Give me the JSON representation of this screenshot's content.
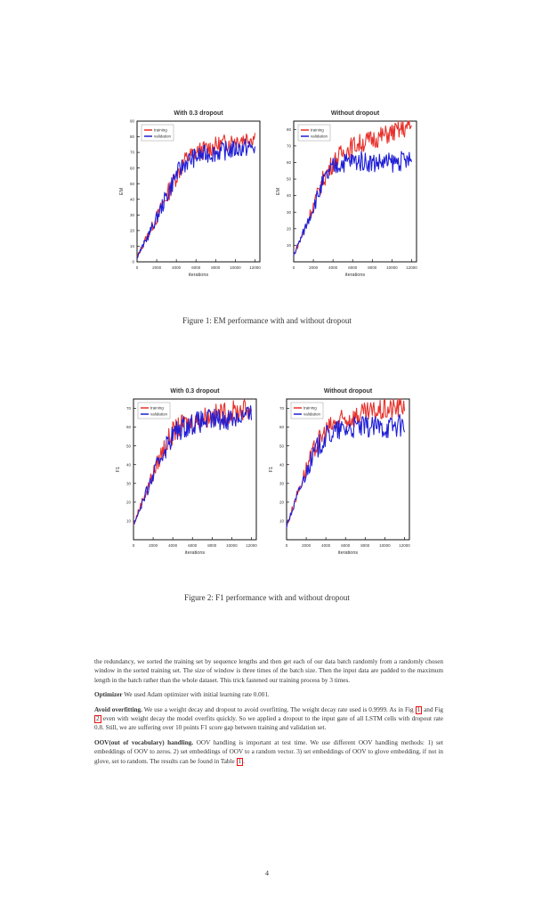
{
  "figure1": {
    "caption": "Figure 1: EM performance with and without dropout",
    "charts": [
      {
        "title": "With 0.3 dropout",
        "xlabel": "iterations",
        "ylabel": "EM",
        "legend": [
          "training",
          "validation"
        ],
        "xticks": [
          "0",
          "2000",
          "4000",
          "6000",
          "8000",
          "10000",
          "12000"
        ],
        "yticks": [
          "0",
          "10",
          "20",
          "30",
          "40",
          "50",
          "60",
          "70",
          "80",
          "90"
        ]
      },
      {
        "title": "Without dropout",
        "xlabel": "iterations",
        "ylabel": "EM",
        "legend": [
          "training",
          "validation"
        ],
        "xticks": [
          "0",
          "2000",
          "4000",
          "6000",
          "8000",
          "10000",
          "12000"
        ],
        "yticks": [
          "10",
          "20",
          "30",
          "40",
          "50",
          "60",
          "70",
          "80"
        ]
      }
    ]
  },
  "figure2": {
    "caption": "Figure 2: F1 performance with and without dropout",
    "charts": [
      {
        "title": "With 0.3 dropout",
        "xlabel": "iterations",
        "ylabel": "F1",
        "legend": [
          "training",
          "validation"
        ],
        "xticks": [
          "0",
          "2000",
          "4000",
          "6000",
          "8000",
          "10000",
          "12000"
        ],
        "yticks": [
          "10",
          "20",
          "30",
          "40",
          "50",
          "60",
          "70"
        ]
      },
      {
        "title": "Without dropout",
        "xlabel": "iterations",
        "ylabel": "F1",
        "legend": [
          "training",
          "validation"
        ],
        "xticks": [
          "0",
          "2000",
          "4000",
          "6000",
          "8000",
          "10000",
          "12000"
        ],
        "yticks": [
          "10",
          "20",
          "30",
          "40",
          "50",
          "60",
          "70"
        ]
      }
    ]
  },
  "chart_data": [
    {
      "type": "line",
      "title": "With 0.3 dropout",
      "xlabel": "iterations",
      "ylabel": "EM",
      "xlim": [
        0,
        12500
      ],
      "ylim": [
        0,
        90
      ],
      "x": [
        0,
        1000,
        2000,
        3000,
        4000,
        5000,
        6000,
        7000,
        8000,
        9000,
        10000,
        11000,
        12000
      ],
      "series": [
        {
          "name": "training",
          "color": "#e8302a",
          "values": [
            3,
            16,
            28,
            42,
            55,
            66,
            70,
            72,
            74,
            76,
            78,
            79,
            80
          ]
        },
        {
          "name": "validation",
          "color": "#1f1fd6",
          "values": [
            3,
            15,
            28,
            42,
            56,
            64,
            67,
            69,
            70,
            71,
            72,
            73,
            73
          ]
        }
      ]
    },
    {
      "type": "line",
      "title": "Without dropout",
      "xlabel": "iterations",
      "ylabel": "EM",
      "xlim": [
        0,
        12500
      ],
      "ylim": [
        0,
        85
      ],
      "x": [
        0,
        1000,
        2000,
        3000,
        4000,
        5000,
        6000,
        7000,
        8000,
        9000,
        10000,
        11000,
        12000
      ],
      "series": [
        {
          "name": "training",
          "color": "#e8302a",
          "values": [
            4,
            18,
            34,
            50,
            60,
            66,
            70,
            72,
            74,
            76,
            78,
            80,
            82
          ]
        },
        {
          "name": "validation",
          "color": "#1f1fd6",
          "values": [
            4,
            18,
            33,
            48,
            57,
            60,
            61,
            61,
            60,
            60,
            60,
            61,
            61
          ]
        }
      ]
    },
    {
      "type": "line",
      "title": "With 0.3 dropout",
      "xlabel": "iterations",
      "ylabel": "F1",
      "xlim": [
        0,
        12500
      ],
      "ylim": [
        0,
        75
      ],
      "x": [
        0,
        1000,
        2000,
        3000,
        4000,
        5000,
        6000,
        7000,
        8000,
        9000,
        10000,
        11000,
        12000
      ],
      "series": [
        {
          "name": "training",
          "color": "#e8302a",
          "values": [
            8,
            22,
            35,
            48,
            57,
            61,
            63,
            65,
            66,
            67,
            68,
            69,
            70
          ]
        },
        {
          "name": "validation",
          "color": "#1f1fd6",
          "values": [
            8,
            21,
            34,
            47,
            56,
            60,
            62,
            63,
            64,
            64,
            65,
            66,
            66
          ]
        }
      ]
    },
    {
      "type": "line",
      "title": "Without dropout",
      "xlabel": "iterations",
      "ylabel": "F1",
      "xlim": [
        0,
        12500
      ],
      "ylim": [
        0,
        75
      ],
      "x": [
        0,
        1000,
        2000,
        3000,
        4000,
        5000,
        6000,
        7000,
        8000,
        9000,
        10000,
        11000,
        12000
      ],
      "series": [
        {
          "name": "training",
          "color": "#e8302a",
          "values": [
            7,
            23,
            38,
            50,
            58,
            62,
            64,
            66,
            67,
            68,
            69,
            70,
            72
          ]
        },
        {
          "name": "validation",
          "color": "#1f1fd6",
          "values": [
            7,
            22,
            36,
            48,
            55,
            58,
            59,
            60,
            60,
            60,
            60,
            61,
            61
          ]
        }
      ]
    }
  ],
  "text": {
    "p1": "the redundancy, we sorted the training set by sequence lengths and then get each of our data batch randomly from a randomly chosen window in the sorted training set. The size of window is three times of the batch size. Then the input data are padded to the maximum length in the batch rather than the whole dataset. This trick fastened our training process by 3 times.",
    "opt_head": "Optimizer",
    "opt_body": "We used Adam optimizer with initial learning rate 0.001.",
    "avoid_head": "Avoid overfitting.",
    "avoid_a": "We use a weight decay and dropout to avoid overfitting. The weight decay rate used is 0.9999. As in Fig",
    "avoid_ref1": "1",
    "avoid_b": "and Fig",
    "avoid_ref2": "2",
    "avoid_c": "even with weight decay the model overfits quickly. So we applied a dropout to the input gate of all LSTM cells with dropout rate 0.8. Still, we are suffering over 10 points F1 score gap between training and validation set.",
    "oov_head": "OOV(out of vocabulary) handling.",
    "oov_a": "OOV handling is important at test time. We use different OOV handling methods: 1) set embeddings of OOV to zeros. 2) set embeddings of OOV to a random vector. 3) set embeddings of OOV to glove embedding, if not in glove, set to random. The results can be found in Table",
    "oov_ref": "1",
    "oov_end": "."
  },
  "page_number": "4"
}
